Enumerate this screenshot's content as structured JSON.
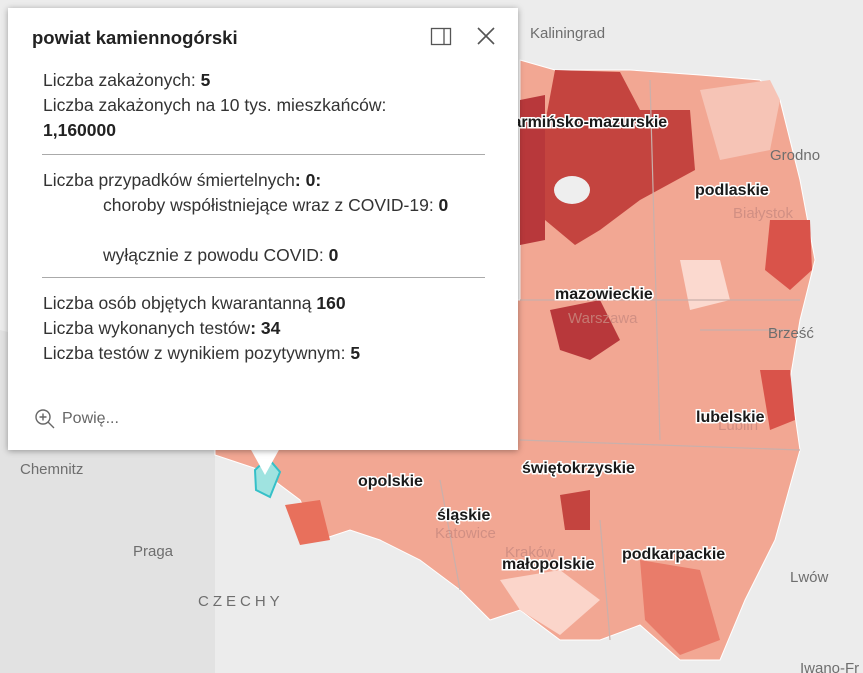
{
  "popup": {
    "title": "powiat kamiennogórski",
    "infected_label": "Liczba zakażonych: ",
    "infected": "5",
    "per10k_label": "Liczba zakażonych na 10 tys. mieszkańców:",
    "per10k": "1,160000",
    "deaths_label": "Liczba przypadków śmiertelnych",
    "deaths": ": 0:",
    "comorb_label": "choroby współistniejące wraz z COVID-19: ",
    "comorb": "0",
    "covid_only_label": "wyłącznie z powodu COVID: ",
    "covid_only": "0",
    "quarantine_label": "Liczba osób objętych kwarantanną ",
    "quarantine": "160",
    "tests_label": "Liczba wykonanych testów",
    "tests": ": 34",
    "positive_label": "Liczba testów z wynikiem pozytywnym: ",
    "positive": "5",
    "zoom": "Powię..."
  },
  "map": {
    "places": [
      "Kaliningrad",
      "Grodno",
      "Białystok",
      "Brześć",
      "Lwów",
      "Iwano-Fr",
      "Chemnitz",
      "Praga",
      "CZECHY",
      "Warszawa",
      "Lublin",
      "Katowice",
      "Kraków"
    ],
    "regions": [
      "warmińsko-mazurskie",
      "podlaskie",
      "mazowieckie",
      "lubelskie",
      "opolskie",
      "świętokrzyskie",
      "śląskie",
      "małopolskie",
      "podkarpackie"
    ]
  }
}
